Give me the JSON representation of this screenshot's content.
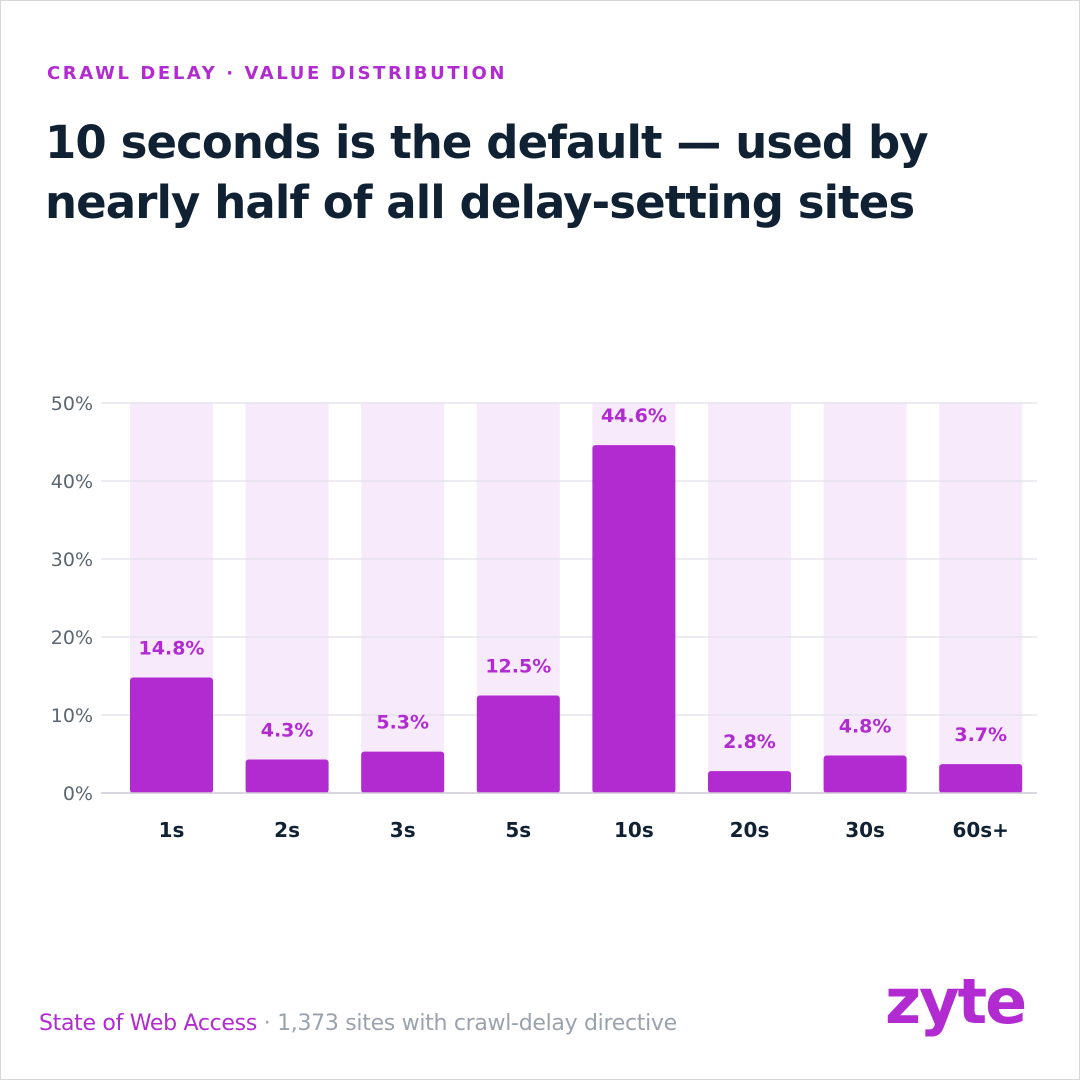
{
  "eyebrow": "CRAWL DELAY · VALUE DISTRIBUTION",
  "headline": "10 seconds is the default — used by nearly half of all delay-setting sites",
  "footer": {
    "source": "State of Web Access",
    "separator": " · ",
    "note": "1,373 sites with crawl-delay directive"
  },
  "logo": "zyte",
  "colors": {
    "accent": "#b12bd1",
    "bar_background": "#f7eafb",
    "title": "#0f2133",
    "axis_text": "#5c6670",
    "gridline": "#e3e0ea"
  },
  "chart_data": {
    "type": "bar",
    "categories": [
      "1s",
      "2s",
      "3s",
      "5s",
      "10s",
      "20s",
      "30s",
      "60s+"
    ],
    "values": [
      14.8,
      4.3,
      5.3,
      12.5,
      44.6,
      2.8,
      4.8,
      3.7
    ],
    "value_labels": [
      "14.8%",
      "4.3%",
      "5.3%",
      "12.5%",
      "44.6%",
      "2.8%",
      "4.8%",
      "3.7%"
    ],
    "yticks": [
      0,
      10,
      20,
      30,
      40,
      50
    ],
    "ytick_labels": [
      "0%",
      "10%",
      "20%",
      "30%",
      "40%",
      "50%"
    ],
    "ylim": [
      0,
      50
    ],
    "grid": true,
    "title": "",
    "xlabel": "",
    "ylabel": ""
  }
}
